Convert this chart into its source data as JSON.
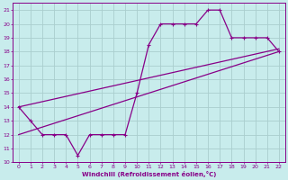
{
  "bg_color": "#c8ecec",
  "grid_color": "#aacece",
  "line_color": "#880088",
  "xlim": [
    -0.5,
    22.5
  ],
  "ylim": [
    10,
    21.5
  ],
  "xticks": [
    0,
    1,
    2,
    3,
    4,
    5,
    6,
    7,
    8,
    9,
    10,
    11,
    12,
    13,
    14,
    15,
    16,
    17,
    18,
    19,
    20,
    21,
    22
  ],
  "yticks": [
    10,
    11,
    12,
    13,
    14,
    15,
    16,
    17,
    18,
    19,
    20,
    21
  ],
  "xlabel": "Windchill (Refroidissement éolien,°C)",
  "zigzag_x": [
    0,
    1,
    2,
    3,
    4,
    5,
    6,
    7,
    8,
    9,
    10,
    11,
    12,
    13,
    14,
    15,
    16,
    17,
    18,
    19,
    20,
    21,
    22
  ],
  "zigzag_y": [
    14,
    13,
    12,
    12,
    12,
    10.5,
    12,
    12,
    12,
    12,
    15,
    18.5,
    20,
    20,
    20,
    20,
    21,
    21,
    19,
    19,
    19,
    19,
    18
  ],
  "line1_x": [
    0,
    22
  ],
  "line1_y": [
    14.0,
    18.2
  ],
  "line2_x": [
    0,
    22
  ],
  "line2_y": [
    12.0,
    18.0
  ]
}
